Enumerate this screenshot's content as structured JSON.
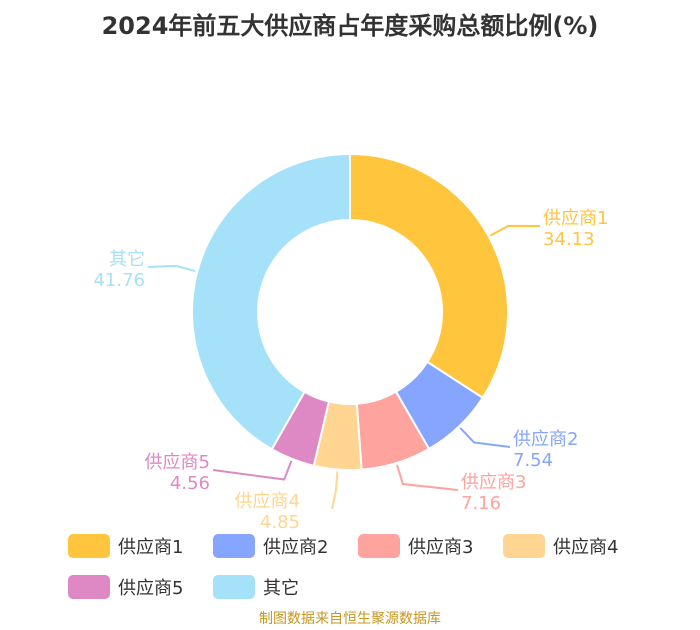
{
  "chart_data": {
    "type": "pie",
    "title": "2024年前五大供应商占年度采购总额比例(%)",
    "categories": [
      "供应商1",
      "供应商2",
      "供应商3",
      "供应商4",
      "供应商5",
      "其它"
    ],
    "values": [
      34.13,
      7.54,
      7.16,
      4.85,
      4.56,
      41.76
    ],
    "value_labels": [
      "34.13",
      "7.54",
      "7.16",
      "4.85",
      "4.56",
      "41.76"
    ],
    "colors": [
      "#ffc53d",
      "#85a5ff",
      "#ffa39e",
      "#ffd591",
      "#de89c4",
      "#a6e1fa"
    ],
    "label_colors": [
      "#ffc53d",
      "#85a5ff",
      "#ffa39e",
      "#ffd591",
      "#de89c4",
      "#a6e1fa"
    ],
    "donut": true,
    "legend_position": "bottom",
    "source": "制图数据来自恒生聚源数据库"
  }
}
